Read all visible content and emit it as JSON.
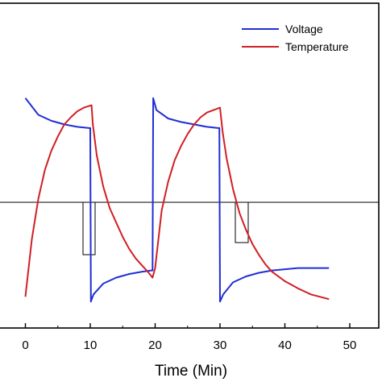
{
  "chart_data": {
    "type": "line",
    "xlabel": "Time (Min)",
    "ylabel": "",
    "xlim": [
      -5,
      55
    ],
    "x_ticks": [
      0,
      10,
      20,
      30,
      40,
      50
    ],
    "grid": false,
    "legend": {
      "placement": "top-right"
    },
    "series": [
      {
        "name": "Voltage",
        "color": "#1f2ed6",
        "x": [
          0,
          2,
          4,
          6,
          8,
          9.8,
          10.0,
          10.1,
          10.5,
          12,
          14,
          16,
          18,
          19.4,
          19.6,
          19.7,
          20.2,
          22,
          24,
          26,
          28,
          29.7,
          29.9,
          30.0,
          30.5,
          32,
          34,
          36,
          38,
          40,
          42,
          44,
          46.8
        ],
        "y": [
          0.91,
          0.84,
          0.815,
          0.8,
          0.79,
          0.785,
          0.785,
          0.06,
          0.09,
          0.135,
          0.16,
          0.175,
          0.185,
          0.19,
          0.19,
          0.91,
          0.86,
          0.825,
          0.81,
          0.8,
          0.79,
          0.785,
          0.785,
          0.06,
          0.09,
          0.14,
          0.165,
          0.18,
          0.19,
          0.195,
          0.2,
          0.2,
          0.2
        ]
      },
      {
        "name": "Temperature",
        "color": "#d11f24",
        "x": [
          0,
          1,
          2,
          3,
          4,
          5,
          6,
          7,
          8,
          9,
          10.2,
          10.4,
          11,
          12,
          13,
          14,
          15,
          16,
          17,
          18,
          19,
          19.6,
          20,
          21,
          22,
          23,
          24,
          25,
          26,
          27,
          28,
          29,
          30,
          30.4,
          31,
          32,
          33,
          34,
          35,
          36,
          37,
          38,
          40,
          42,
          44,
          46.8
        ],
        "y": [
          0.08,
          0.32,
          0.49,
          0.61,
          0.69,
          0.75,
          0.8,
          0.83,
          0.855,
          0.87,
          0.88,
          0.8,
          0.67,
          0.54,
          0.45,
          0.39,
          0.33,
          0.28,
          0.24,
          0.21,
          0.18,
          0.16,
          0.2,
          0.44,
          0.56,
          0.65,
          0.71,
          0.76,
          0.8,
          0.83,
          0.85,
          0.86,
          0.87,
          0.77,
          0.66,
          0.53,
          0.43,
          0.36,
          0.3,
          0.255,
          0.215,
          0.185,
          0.145,
          0.115,
          0.09,
          0.07
        ]
      }
    ]
  }
}
